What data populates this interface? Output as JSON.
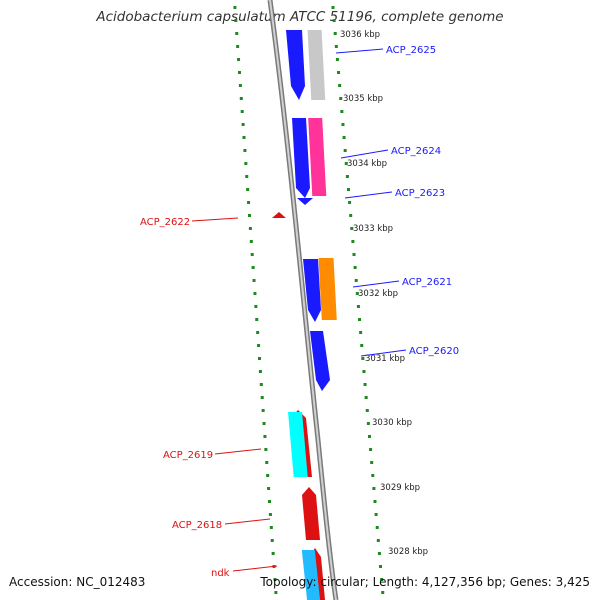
{
  "title": "Acidobacterium capsulatum ATCC 51196, complete genome",
  "footer": {
    "accession": "Accession: NC_012483",
    "summary": "Topology: circular; Length: 4,127,356 bp; Genes: 3,425"
  },
  "colors": {
    "backbone": "#9a9a9a",
    "gc_skew": "#1f8a1f",
    "forward_label": "#1a1aff",
    "reverse_label": "#dd1111"
  },
  "ticks": [
    "3036 kbp",
    "3035 kbp",
    "3034 kbp",
    "3033 kbp",
    "3032 kbp",
    "3031 kbp",
    "3030 kbp",
    "3029 kbp",
    "3028 kbp"
  ],
  "genes": [
    {
      "id": "ACP_2625",
      "strand": "forward",
      "label": "ACP_2625",
      "color": "#1a1aff"
    },
    {
      "id": "ACP_2624",
      "strand": "forward",
      "label": "ACP_2624",
      "color": "#1a1aff"
    },
    {
      "id": "ACP_2623",
      "strand": "forward",
      "label": "ACP_2623",
      "color": "#1a1aff"
    },
    {
      "id": "ACP_2622",
      "strand": "reverse",
      "label": "ACP_2622",
      "color": "#dd1111"
    },
    {
      "id": "ACP_2621",
      "strand": "forward",
      "label": "ACP_2621",
      "color": "#1a1aff"
    },
    {
      "id": "ACP_2620",
      "strand": "forward",
      "label": "ACP_2620",
      "color": "#1a1aff"
    },
    {
      "id": "ACP_2619",
      "strand": "reverse",
      "label": "ACP_2619",
      "color": "#dd1111"
    },
    {
      "id": "ACP_2618",
      "strand": "reverse",
      "label": "ACP_2618",
      "color": "#dd1111"
    },
    {
      "id": "ndk",
      "strand": "reverse",
      "label": "ndk",
      "color": "#dd1111"
    }
  ],
  "cog_colors": [
    "#c8c8c8",
    "#ff3399",
    "#ff8c00",
    "#00ffff",
    "#22bbff"
  ]
}
